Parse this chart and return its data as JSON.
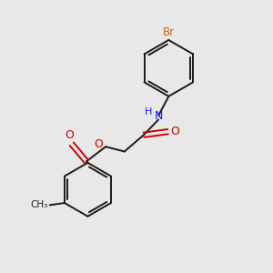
{
  "background_color": "#e8e8e8",
  "bond_color": "#1a1a1a",
  "N_color": "#1919ff",
  "O_color": "#cc0000",
  "Br_color": "#cc6600",
  "lw": 1.4,
  "figsize": [
    3.0,
    3.0
  ],
  "dpi": 100,
  "xlim": [
    0,
    10
  ],
  "ylim": [
    0,
    10
  ]
}
